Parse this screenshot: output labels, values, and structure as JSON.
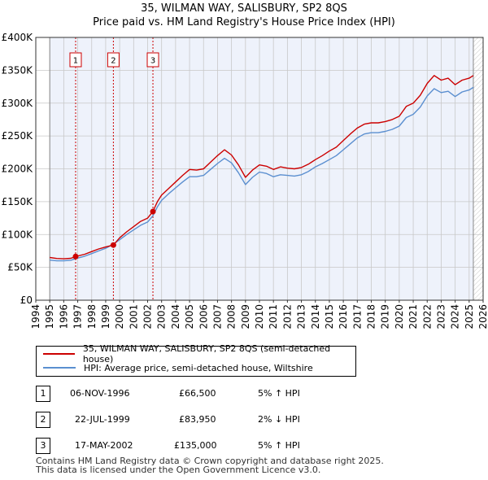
{
  "title_line1": "35, WILMAN WAY, SALISBURY, SP2 8QS",
  "title_line2": "Price paid vs. HM Land Registry's House Price Index (HPI)",
  "legend": {
    "property": "35, WILMAN WAY, SALISBURY, SP2 8QS (semi-detached house)",
    "hpi": "HPI: Average price, semi-detached house, Wiltshire"
  },
  "colors": {
    "property": "#cc0000",
    "hpi": "#5b8fd0",
    "shade": "#eef2fb",
    "grid": "#c8c8c8",
    "sale_line": "#cc0000"
  },
  "sales": [
    {
      "num": "1",
      "date": "06-NOV-1996",
      "price": "£66,500",
      "hpi": "5% ↑ HPI"
    },
    {
      "num": "2",
      "date": "22-JUL-1999",
      "price": "£83,950",
      "hpi": "2% ↓ HPI"
    },
    {
      "num": "3",
      "date": "17-MAY-2002",
      "price": "£135,000",
      "hpi": "5% ↑ HPI"
    }
  ],
  "footer": {
    "line1": "Contains HM Land Registry data © Crown copyright and database right 2025.",
    "line2": "This data is licensed under the Open Government Licence v3.0."
  },
  "chart_data": {
    "type": "line",
    "title": "35, WILMAN WAY, SALISBURY, SP2 8QS — Price paid vs. HM Land Registry's House Price Index (HPI)",
    "xlabel": "",
    "ylabel": "",
    "xlim": [
      1994,
      2026
    ],
    "ylim": [
      0,
      400000
    ],
    "x_ticks": [
      1994,
      1995,
      1996,
      1997,
      1998,
      1999,
      2000,
      2001,
      2002,
      2003,
      2004,
      2005,
      2006,
      2007,
      2008,
      2009,
      2010,
      2011,
      2012,
      2013,
      2014,
      2015,
      2016,
      2017,
      2018,
      2019,
      2020,
      2021,
      2022,
      2023,
      2024,
      2025,
      2026
    ],
    "y_ticks": [
      0,
      50000,
      100000,
      150000,
      200000,
      250000,
      300000,
      350000,
      400000
    ],
    "y_tick_labels": [
      "£0",
      "£50K",
      "£100K",
      "£150K",
      "£200K",
      "£250K",
      "£300K",
      "£350K",
      "£400K"
    ],
    "data_start": 1995.0,
    "data_end": 2025.3,
    "series": [
      {
        "name": "35, WILMAN WAY, SALISBURY, SP2 8QS (semi-detached house)",
        "x": [
          1995.0,
          1995.5,
          1996.0,
          1996.5,
          1996.85,
          1997.5,
          1998.0,
          1998.5,
          1999.0,
          1999.55,
          2000.0,
          2000.5,
          2001.0,
          2001.5,
          2002.0,
          2002.38,
          2002.7,
          2003.0,
          2003.5,
          2004.0,
          2004.5,
          2005.0,
          2005.5,
          2006.0,
          2006.5,
          2007.0,
          2007.5,
          2008.0,
          2008.5,
          2009.0,
          2009.5,
          2010.0,
          2010.5,
          2011.0,
          2011.5,
          2012.0,
          2012.5,
          2013.0,
          2013.5,
          2014.0,
          2014.5,
          2015.0,
          2015.5,
          2016.0,
          2016.5,
          2017.0,
          2017.5,
          2018.0,
          2018.5,
          2019.0,
          2019.5,
          2020.0,
          2020.5,
          2021.0,
          2021.5,
          2022.0,
          2022.5,
          2023.0,
          2023.5,
          2024.0,
          2024.5,
          2025.0,
          2025.3
        ],
        "values": [
          65000,
          63500,
          63000,
          63800,
          66500,
          70000,
          74000,
          78000,
          81000,
          83950,
          95000,
          104000,
          112000,
          120000,
          125000,
          135000,
          150000,
          160000,
          170000,
          180000,
          190000,
          199000,
          198000,
          200000,
          210000,
          220000,
          229000,
          221000,
          206000,
          187000,
          198000,
          206000,
          204000,
          199000,
          203000,
          201000,
          200000,
          202000,
          207000,
          214000,
          220000,
          227000,
          233000,
          243000,
          253000,
          262000,
          268000,
          270000,
          270000,
          272000,
          275000,
          280000,
          295000,
          300000,
          312000,
          330000,
          342000,
          335000,
          338000,
          328000,
          335000,
          338000,
          342000
        ]
      },
      {
        "name": "HPI: Average price, semi-detached house, Wiltshire",
        "x": [
          1995.0,
          1995.5,
          1996.0,
          1996.5,
          1996.85,
          1997.5,
          1998.0,
          1998.5,
          1999.0,
          1999.55,
          2000.0,
          2000.5,
          2001.0,
          2001.5,
          2002.0,
          2002.38,
          2002.7,
          2003.0,
          2003.5,
          2004.0,
          2004.5,
          2005.0,
          2005.5,
          2006.0,
          2006.5,
          2007.0,
          2007.5,
          2008.0,
          2008.5,
          2009.0,
          2009.5,
          2010.0,
          2010.5,
          2011.0,
          2011.5,
          2012.0,
          2012.5,
          2013.0,
          2013.5,
          2014.0,
          2014.5,
          2015.0,
          2015.5,
          2016.0,
          2016.5,
          2017.0,
          2017.5,
          2018.0,
          2018.5,
          2019.0,
          2019.5,
          2020.0,
          2020.5,
          2021.0,
          2021.5,
          2022.0,
          2022.5,
          2023.0,
          2023.5,
          2024.0,
          2024.5,
          2025.0,
          2025.3
        ],
        "values": [
          61000,
          60000,
          60000,
          60800,
          63300,
          67000,
          71000,
          75000,
          79000,
          85500,
          92000,
          100000,
          107000,
          114000,
          119000,
          128500,
          142000,
          152000,
          162000,
          171000,
          180000,
          188000,
          188000,
          190000,
          199000,
          208000,
          216000,
          209000,
          194000,
          176000,
          187000,
          195000,
          193000,
          188000,
          191000,
          190000,
          189000,
          191000,
          196000,
          203000,
          208000,
          214000,
          220000,
          229000,
          238000,
          247000,
          253000,
          255000,
          255000,
          257000,
          260000,
          265000,
          278000,
          283000,
          294000,
          311000,
          322000,
          316000,
          318000,
          310000,
          317000,
          320000,
          324000
        ]
      }
    ],
    "sales_markers": [
      {
        "label": "1",
        "x": 1996.85,
        "y": 66500
      },
      {
        "label": "2",
        "x": 1999.55,
        "y": 83950
      },
      {
        "label": "3",
        "x": 2002.38,
        "y": 135000
      }
    ]
  }
}
